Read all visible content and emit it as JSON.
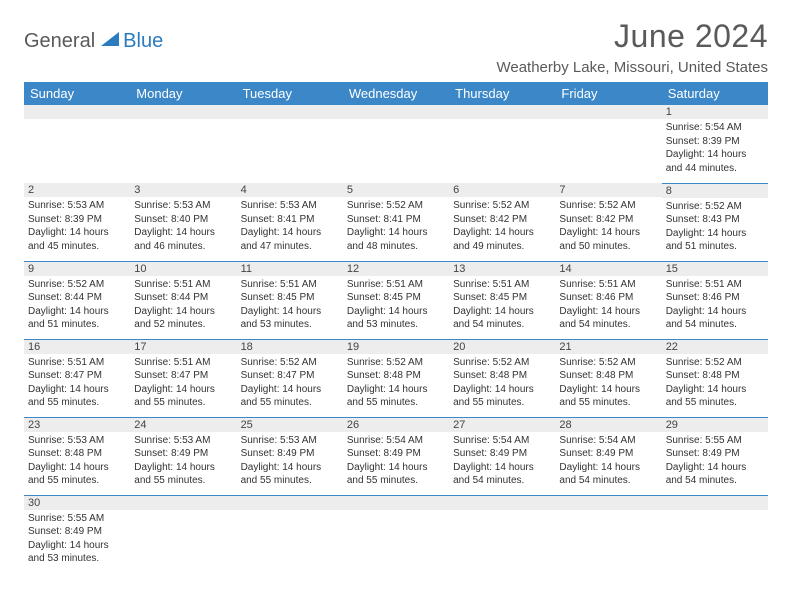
{
  "logo": {
    "text1": "General",
    "text2": "Blue"
  },
  "title": "June 2024",
  "location": "Weatherby Lake, Missouri, United States",
  "colors": {
    "header_bg": "#3b87c8",
    "header_fg": "#ffffff",
    "daynum_bg": "#ededed",
    "row_divider": "#3b87c8",
    "title_color": "#5a5a5a",
    "logo_blue": "#2b7bbf"
  },
  "weekdays": [
    "Sunday",
    "Monday",
    "Tuesday",
    "Wednesday",
    "Thursday",
    "Friday",
    "Saturday"
  ],
  "weeks": [
    [
      {
        "day": "",
        "sunrise": "",
        "sunset": "",
        "daylight": ""
      },
      {
        "day": "",
        "sunrise": "",
        "sunset": "",
        "daylight": ""
      },
      {
        "day": "",
        "sunrise": "",
        "sunset": "",
        "daylight": ""
      },
      {
        "day": "",
        "sunrise": "",
        "sunset": "",
        "daylight": ""
      },
      {
        "day": "",
        "sunrise": "",
        "sunset": "",
        "daylight": ""
      },
      {
        "day": "",
        "sunrise": "",
        "sunset": "",
        "daylight": ""
      },
      {
        "day": "1",
        "sunrise": "Sunrise: 5:54 AM",
        "sunset": "Sunset: 8:39 PM",
        "daylight": "Daylight: 14 hours and 44 minutes."
      }
    ],
    [
      {
        "day": "2",
        "sunrise": "Sunrise: 5:53 AM",
        "sunset": "Sunset: 8:39 PM",
        "daylight": "Daylight: 14 hours and 45 minutes."
      },
      {
        "day": "3",
        "sunrise": "Sunrise: 5:53 AM",
        "sunset": "Sunset: 8:40 PM",
        "daylight": "Daylight: 14 hours and 46 minutes."
      },
      {
        "day": "4",
        "sunrise": "Sunrise: 5:53 AM",
        "sunset": "Sunset: 8:41 PM",
        "daylight": "Daylight: 14 hours and 47 minutes."
      },
      {
        "day": "5",
        "sunrise": "Sunrise: 5:52 AM",
        "sunset": "Sunset: 8:41 PM",
        "daylight": "Daylight: 14 hours and 48 minutes."
      },
      {
        "day": "6",
        "sunrise": "Sunrise: 5:52 AM",
        "sunset": "Sunset: 8:42 PM",
        "daylight": "Daylight: 14 hours and 49 minutes."
      },
      {
        "day": "7",
        "sunrise": "Sunrise: 5:52 AM",
        "sunset": "Sunset: 8:42 PM",
        "daylight": "Daylight: 14 hours and 50 minutes."
      },
      {
        "day": "8",
        "sunrise": "Sunrise: 5:52 AM",
        "sunset": "Sunset: 8:43 PM",
        "daylight": "Daylight: 14 hours and 51 minutes."
      }
    ],
    [
      {
        "day": "9",
        "sunrise": "Sunrise: 5:52 AM",
        "sunset": "Sunset: 8:44 PM",
        "daylight": "Daylight: 14 hours and 51 minutes."
      },
      {
        "day": "10",
        "sunrise": "Sunrise: 5:51 AM",
        "sunset": "Sunset: 8:44 PM",
        "daylight": "Daylight: 14 hours and 52 minutes."
      },
      {
        "day": "11",
        "sunrise": "Sunrise: 5:51 AM",
        "sunset": "Sunset: 8:45 PM",
        "daylight": "Daylight: 14 hours and 53 minutes."
      },
      {
        "day": "12",
        "sunrise": "Sunrise: 5:51 AM",
        "sunset": "Sunset: 8:45 PM",
        "daylight": "Daylight: 14 hours and 53 minutes."
      },
      {
        "day": "13",
        "sunrise": "Sunrise: 5:51 AM",
        "sunset": "Sunset: 8:45 PM",
        "daylight": "Daylight: 14 hours and 54 minutes."
      },
      {
        "day": "14",
        "sunrise": "Sunrise: 5:51 AM",
        "sunset": "Sunset: 8:46 PM",
        "daylight": "Daylight: 14 hours and 54 minutes."
      },
      {
        "day": "15",
        "sunrise": "Sunrise: 5:51 AM",
        "sunset": "Sunset: 8:46 PM",
        "daylight": "Daylight: 14 hours and 54 minutes."
      }
    ],
    [
      {
        "day": "16",
        "sunrise": "Sunrise: 5:51 AM",
        "sunset": "Sunset: 8:47 PM",
        "daylight": "Daylight: 14 hours and 55 minutes."
      },
      {
        "day": "17",
        "sunrise": "Sunrise: 5:51 AM",
        "sunset": "Sunset: 8:47 PM",
        "daylight": "Daylight: 14 hours and 55 minutes."
      },
      {
        "day": "18",
        "sunrise": "Sunrise: 5:52 AM",
        "sunset": "Sunset: 8:47 PM",
        "daylight": "Daylight: 14 hours and 55 minutes."
      },
      {
        "day": "19",
        "sunrise": "Sunrise: 5:52 AM",
        "sunset": "Sunset: 8:48 PM",
        "daylight": "Daylight: 14 hours and 55 minutes."
      },
      {
        "day": "20",
        "sunrise": "Sunrise: 5:52 AM",
        "sunset": "Sunset: 8:48 PM",
        "daylight": "Daylight: 14 hours and 55 minutes."
      },
      {
        "day": "21",
        "sunrise": "Sunrise: 5:52 AM",
        "sunset": "Sunset: 8:48 PM",
        "daylight": "Daylight: 14 hours and 55 minutes."
      },
      {
        "day": "22",
        "sunrise": "Sunrise: 5:52 AM",
        "sunset": "Sunset: 8:48 PM",
        "daylight": "Daylight: 14 hours and 55 minutes."
      }
    ],
    [
      {
        "day": "23",
        "sunrise": "Sunrise: 5:53 AM",
        "sunset": "Sunset: 8:48 PM",
        "daylight": "Daylight: 14 hours and 55 minutes."
      },
      {
        "day": "24",
        "sunrise": "Sunrise: 5:53 AM",
        "sunset": "Sunset: 8:49 PM",
        "daylight": "Daylight: 14 hours and 55 minutes."
      },
      {
        "day": "25",
        "sunrise": "Sunrise: 5:53 AM",
        "sunset": "Sunset: 8:49 PM",
        "daylight": "Daylight: 14 hours and 55 minutes."
      },
      {
        "day": "26",
        "sunrise": "Sunrise: 5:54 AM",
        "sunset": "Sunset: 8:49 PM",
        "daylight": "Daylight: 14 hours and 55 minutes."
      },
      {
        "day": "27",
        "sunrise": "Sunrise: 5:54 AM",
        "sunset": "Sunset: 8:49 PM",
        "daylight": "Daylight: 14 hours and 54 minutes."
      },
      {
        "day": "28",
        "sunrise": "Sunrise: 5:54 AM",
        "sunset": "Sunset: 8:49 PM",
        "daylight": "Daylight: 14 hours and 54 minutes."
      },
      {
        "day": "29",
        "sunrise": "Sunrise: 5:55 AM",
        "sunset": "Sunset: 8:49 PM",
        "daylight": "Daylight: 14 hours and 54 minutes."
      }
    ],
    [
      {
        "day": "30",
        "sunrise": "Sunrise: 5:55 AM",
        "sunset": "Sunset: 8:49 PM",
        "daylight": "Daylight: 14 hours and 53 minutes."
      },
      {
        "day": "",
        "sunrise": "",
        "sunset": "",
        "daylight": ""
      },
      {
        "day": "",
        "sunrise": "",
        "sunset": "",
        "daylight": ""
      },
      {
        "day": "",
        "sunrise": "",
        "sunset": "",
        "daylight": ""
      },
      {
        "day": "",
        "sunrise": "",
        "sunset": "",
        "daylight": ""
      },
      {
        "day": "",
        "sunrise": "",
        "sunset": "",
        "daylight": ""
      },
      {
        "day": "",
        "sunrise": "",
        "sunset": "",
        "daylight": ""
      }
    ]
  ]
}
